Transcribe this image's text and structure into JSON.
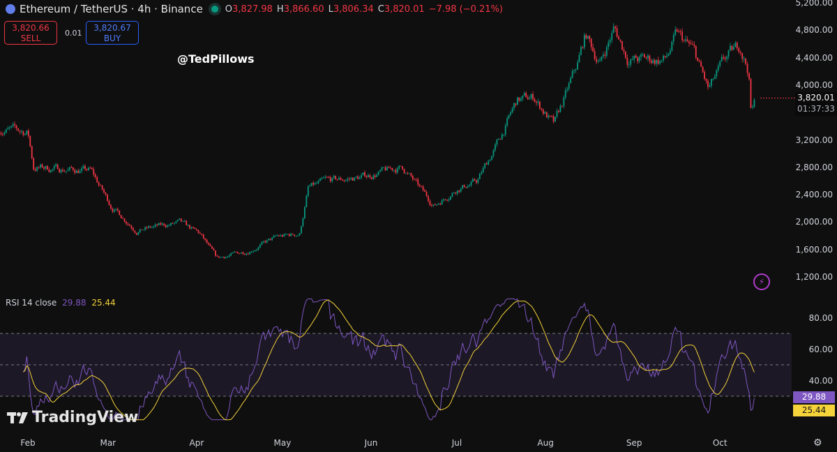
{
  "header": {
    "symbol": "Ethereum / TetherUS · 4h · Binance",
    "open_label": "O",
    "open": "3,827.98",
    "high_label": "H",
    "high": "3,866.60",
    "low_label": "L",
    "low": "3,806.34",
    "close_label": "C",
    "close": "3,820.01",
    "change": "−7.98 (−0.21%)"
  },
  "trade": {
    "sell_price": "3,820.66",
    "sell_label": "SELL",
    "spread": "0.01",
    "buy_price": "3,820.67",
    "buy_label": "BUY"
  },
  "watermark": "@TedPillows",
  "logo": "TradingView",
  "last_price": {
    "price": "3,820.01",
    "countdown": "01:37:33"
  },
  "rsi": {
    "label": "RSI 14 close",
    "value": "29.88",
    "ma": "25.44",
    "ticks": [
      "80.00",
      "60.00",
      "40.00"
    ],
    "levels": [
      70,
      50,
      30
    ]
  },
  "colors": {
    "up": "#089981",
    "down": "#f23645",
    "rsi": "#7e57c2",
    "rsi_ma": "#f5d33a",
    "bg": "#0f0f0f"
  },
  "icons": {
    "sell_buy": "none",
    "lightning": "lightning-icon",
    "settings": "settings-icon"
  },
  "chart_data": {
    "type": "candlestick",
    "symbol": "ETHUSDT",
    "interval": "4h",
    "y_ticks": [
      "5,200.00",
      "4,800.00",
      "4,400.00",
      "4,000.00",
      "3,200.00",
      "2,800.00",
      "2,400.00",
      "2,000.00",
      "1,600.00",
      "1,200.00"
    ],
    "ylim": [
      1200,
      5200
    ],
    "x_ticks": [
      "Feb",
      "Mar",
      "Apr",
      "May",
      "Jun",
      "Jul",
      "Aug",
      "Sep",
      "Oct"
    ],
    "approx_close_path": [
      [
        "2025-01-22",
        3370
      ],
      [
        "2025-02-01",
        3320
      ],
      [
        "2025-02-03",
        2810
      ],
      [
        "2025-02-23",
        2760
      ],
      [
        "2025-03-02",
        2250
      ],
      [
        "2025-03-11",
        1890
      ],
      [
        "2025-03-26",
        2000
      ],
      [
        "2025-04-02",
        1840
      ],
      [
        "2025-04-08",
        1480
      ],
      [
        "2025-04-19",
        1590
      ],
      [
        "2025-04-29",
        1790
      ],
      [
        "2025-05-07",
        1840
      ],
      [
        "2025-05-10",
        2500
      ],
      [
        "2025-05-16",
        2600
      ],
      [
        "2025-05-28",
        2660
      ],
      [
        "2025-06-12",
        2810
      ],
      [
        "2025-06-17",
        2550
      ],
      [
        "2025-06-23",
        2250
      ],
      [
        "2025-07-01",
        2500
      ],
      [
        "2025-07-08",
        2600
      ],
      [
        "2025-07-16",
        3220
      ],
      [
        "2025-07-22",
        3780
      ],
      [
        "2025-07-28",
        3830
      ],
      [
        "2025-08-04",
        3420
      ],
      [
        "2025-08-12",
        4280
      ],
      [
        "2025-08-15",
        4740
      ],
      [
        "2025-08-20",
        4330
      ],
      [
        "2025-08-25",
        4840
      ],
      [
        "2025-08-30",
        4380
      ],
      [
        "2025-09-12",
        4380
      ],
      [
        "2025-09-16",
        4740
      ],
      [
        "2025-09-22",
        4490
      ],
      [
        "2025-09-27",
        3930
      ],
      [
        "2025-10-03",
        4380
      ],
      [
        "2025-10-08",
        4590
      ],
      [
        "2025-10-11",
        4230
      ],
      [
        "2025-10-12",
        3520
      ],
      [
        "2025-10-13",
        3820
      ]
    ]
  }
}
